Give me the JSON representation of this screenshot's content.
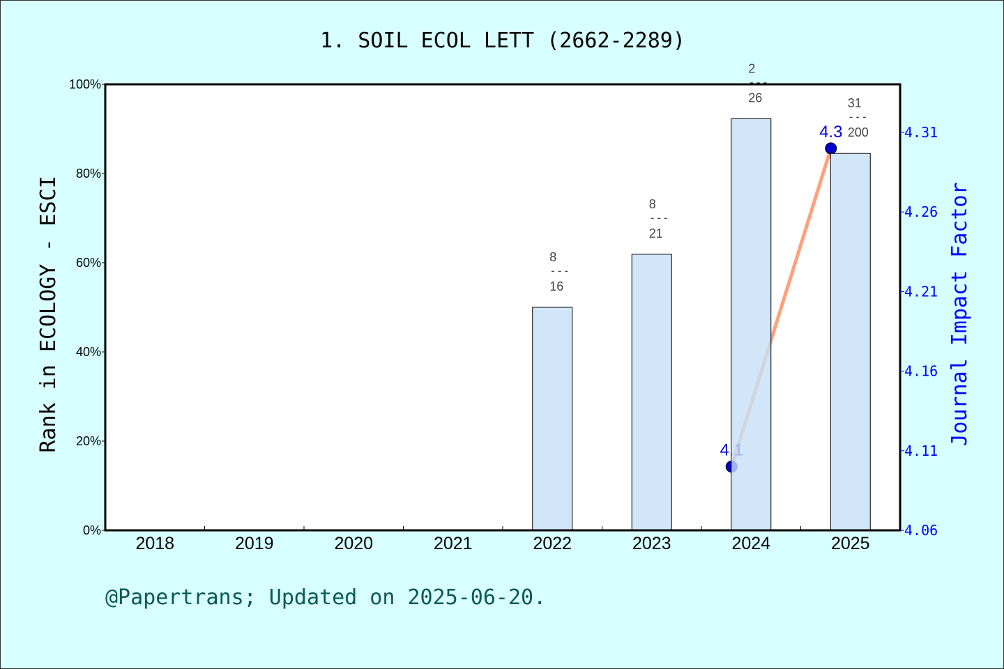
{
  "chart_data": {
    "type": "bar",
    "title": "1. SOIL ECOL LETT (2662-2289)",
    "categories": [
      "2018",
      "2019",
      "2020",
      "2021",
      "2022",
      "2023",
      "2024",
      "2025"
    ],
    "ylabel": "Rank in ECOLOGY - ESCI",
    "ylim": [
      0,
      100
    ],
    "yticks": [
      "0%",
      "20%",
      "40%",
      "60%",
      "80%",
      "100%"
    ],
    "bars": {
      "values": [
        null,
        null,
        null,
        null,
        50.0,
        61.9,
        92.3,
        84.5
      ],
      "rank_labels": [
        null,
        null,
        null,
        null,
        {
          "rank": "8",
          "total": "16"
        },
        {
          "rank": "8",
          "total": "21"
        },
        {
          "rank": "2",
          "total": "26"
        },
        {
          "rank": "31",
          "total": "200"
        }
      ],
      "color": "#c5e0f7"
    },
    "line": {
      "ylabel": "Journal Impact Factor",
      "ylim": [
        4.06,
        4.31
      ],
      "yticks": [
        "4.06",
        "4.11",
        "4.16",
        "4.21",
        "4.26",
        "4.31"
      ],
      "x": [
        "2024",
        "2025"
      ],
      "values": [
        4.1,
        4.3
      ],
      "labels": [
        "4.1",
        "4.3"
      ],
      "color": "#ffa07a",
      "marker_color": "#0000cc",
      "axis_color": "#0000ff"
    },
    "grid": false
  },
  "footer": "@Papertrans; Updated on 2025-06-20."
}
